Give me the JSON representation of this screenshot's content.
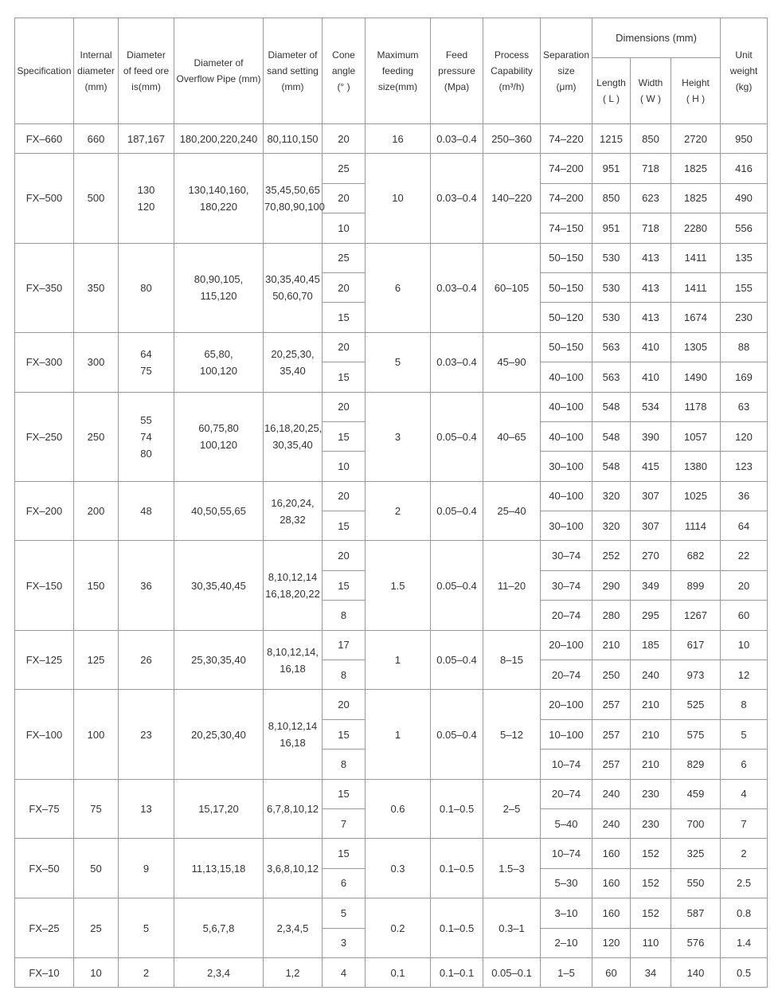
{
  "header": {
    "columns": [
      "Specification",
      "Internal\ndiameter\n(mm)",
      "Diameter\nof feed ore\nis(mm)",
      "Diameter of\nOverflow Pipe (mm)",
      "Diameter of\nsand setting\n(mm)",
      "Cone\nangle\n(°  )",
      "Maximum\nfeeding\nsize(mm)",
      "Feed\npressure\n(Mpa)",
      "Process\nCapability\n(m³/h)",
      "Separation\nsize\n(μm)",
      "Unit\nweight\n(kg)"
    ],
    "dimensions": "Dimensions (mm)",
    "dimension_columns": [
      "Length\n( L )",
      "Width\n( W )",
      "Height\n( H )"
    ]
  },
  "groups": [
    {
      "spec": "FX–660",
      "internal_diameter": "660",
      "feed_ore": "187,167",
      "overflow_pipe": "180,200,220,240",
      "sand_setting": "80,110,150",
      "max_feeding": "16",
      "feed_pressure": "0.03–0.4",
      "capability": "250–360",
      "rows": [
        [
          "20",
          "74–220",
          "1215",
          "850",
          "2720",
          "950"
        ]
      ]
    },
    {
      "spec": "FX–500",
      "internal_diameter": "500",
      "feed_ore": "130\n120",
      "overflow_pipe": "130,140,160,\n180,220",
      "sand_setting": "35,45,50,65\n70,80,90,100",
      "max_feeding": "10",
      "feed_pressure": "0.03–0.4",
      "capability": "140–220",
      "rows": [
        [
          "25",
          "74–200",
          "951",
          "718",
          "1825",
          "416"
        ],
        [
          "20",
          "74–200",
          "850",
          "623",
          "1825",
          "490"
        ],
        [
          "10",
          "74–150",
          "951",
          "718",
          "2280",
          "556"
        ]
      ]
    },
    {
      "spec": "FX–350",
      "internal_diameter": "350",
      "feed_ore": "80",
      "overflow_pipe": "80,90,105,\n115,120",
      "sand_setting": "30,35,40,45\n50,60,70",
      "max_feeding": "6",
      "feed_pressure": "0.03–0.4",
      "capability": "60–105",
      "rows": [
        [
          "25",
          "50–150",
          "530",
          "413",
          "1411",
          "135"
        ],
        [
          "20",
          "50–150",
          "530",
          "413",
          "1411",
          "155"
        ],
        [
          "15",
          "50–120",
          "530",
          "413",
          "1674",
          "230"
        ]
      ]
    },
    {
      "spec": "FX–300",
      "internal_diameter": "300",
      "feed_ore": "64\n75",
      "overflow_pipe": "65,80,\n100,120",
      "sand_setting": "20,25,30,\n35,40",
      "max_feeding": "5",
      "feed_pressure": "0.03–0.4",
      "capability": "45–90",
      "rows": [
        [
          "20",
          "50–150",
          "563",
          "410",
          "1305",
          "88"
        ],
        [
          "15",
          "40–100",
          "563",
          "410",
          "1490",
          "169"
        ]
      ]
    },
    {
      "spec": "FX–250",
      "internal_diameter": "250",
      "feed_ore": "55\n74\n80",
      "overflow_pipe": "60,75,80\n100,120",
      "sand_setting": "16,18,20,25,\n30,35,40",
      "max_feeding": "3",
      "feed_pressure": "0.05–0.4",
      "capability": "40–65",
      "rows": [
        [
          "20",
          "40–100",
          "548",
          "534",
          "1178",
          "63"
        ],
        [
          "15",
          "40–100",
          "548",
          "390",
          "1057",
          "120"
        ],
        [
          "10",
          "30–100",
          "548",
          "415",
          "1380",
          "123"
        ]
      ]
    },
    {
      "spec": "FX–200",
      "internal_diameter": "200",
      "feed_ore": "48",
      "overflow_pipe": "40,50,55,65",
      "sand_setting": "16,20,24,\n28,32",
      "max_feeding": "2",
      "feed_pressure": "0.05–0.4",
      "capability": "25–40",
      "rows": [
        [
          "20",
          "40–100",
          "320",
          "307",
          "1025",
          "36"
        ],
        [
          "15",
          "30–100",
          "320",
          "307",
          "1114",
          "64"
        ]
      ]
    },
    {
      "spec": "FX–150",
      "internal_diameter": "150",
      "feed_ore": "36",
      "overflow_pipe": "30,35,40,45",
      "sand_setting": "8,10,12,14\n16,18,20,22",
      "max_feeding": "1.5",
      "feed_pressure": "0.05–0.4",
      "capability": "11–20",
      "rows": [
        [
          "20",
          "30–74",
          "252",
          "270",
          "682",
          "22"
        ],
        [
          "15",
          "30–74",
          "290",
          "349",
          "899",
          "20"
        ],
        [
          "8",
          "20–74",
          "280",
          "295",
          "1267",
          "60"
        ]
      ]
    },
    {
      "spec": "FX–125",
      "internal_diameter": "125",
      "feed_ore": "26",
      "overflow_pipe": "25,30,35,40",
      "sand_setting": "8,10,12,14,\n16,18",
      "max_feeding": "1",
      "feed_pressure": "0.05–0.4",
      "capability": "8–15",
      "rows": [
        [
          "17",
          "20–100",
          "210",
          "185",
          "617",
          "10"
        ],
        [
          "8",
          "20–74",
          "250",
          "240",
          "973",
          "12"
        ]
      ]
    },
    {
      "spec": "FX–100",
      "internal_diameter": "100",
      "feed_ore": "23",
      "overflow_pipe": "20,25,30,40",
      "sand_setting": "8,10,12,14\n16,18",
      "max_feeding": "1",
      "feed_pressure": "0.05–0.4",
      "capability": "5–12",
      "rows": [
        [
          "20",
          "20–100",
          "257",
          "210",
          "525",
          "8"
        ],
        [
          "15",
          "10–100",
          "257",
          "210",
          "575",
          "5"
        ],
        [
          "8",
          "10–74",
          "257",
          "210",
          "829",
          "6"
        ]
      ]
    },
    {
      "spec": "FX–75",
      "internal_diameter": "75",
      "feed_ore": "13",
      "overflow_pipe": "15,17,20",
      "sand_setting": "6,7,8,10,12",
      "max_feeding": "0.6",
      "feed_pressure": "0.1–0.5",
      "capability": "2–5",
      "rows": [
        [
          "15",
          "20–74",
          "240",
          "230",
          "459",
          "4"
        ],
        [
          "7",
          "5–40",
          "240",
          "230",
          "700",
          "7"
        ]
      ]
    },
    {
      "spec": "FX–50",
      "internal_diameter": "50",
      "feed_ore": "9",
      "overflow_pipe": "11,13,15,18",
      "sand_setting": "3,6,8,10,12",
      "max_feeding": "0.3",
      "feed_pressure": "0.1–0.5",
      "capability": "1.5–3",
      "rows": [
        [
          "15",
          "10–74",
          "160",
          "152",
          "325",
          "2"
        ],
        [
          "6",
          "5–30",
          "160",
          "152",
          "550",
          "2.5"
        ]
      ]
    },
    {
      "spec": "FX–25",
      "internal_diameter": "25",
      "feed_ore": "5",
      "overflow_pipe": "5,6,7,8",
      "sand_setting": "2,3,4,5",
      "max_feeding": "0.2",
      "feed_pressure": "0.1–0.5",
      "capability": "0.3–1",
      "rows": [
        [
          "5",
          "3–10",
          "160",
          "152",
          "587",
          "0.8"
        ],
        [
          "3",
          "2–10",
          "120",
          "110",
          "576",
          "1.4"
        ]
      ]
    },
    {
      "spec": "FX–10",
      "internal_diameter": "10",
      "feed_ore": "2",
      "overflow_pipe": "2,3,4",
      "sand_setting": "1,2",
      "max_feeding": "0.1",
      "feed_pressure": "0.1–0.1",
      "capability": "0.05–0.1",
      "rows": [
        [
          "4",
          "1–5",
          "60",
          "34",
          "140",
          "0.5"
        ]
      ]
    }
  ]
}
